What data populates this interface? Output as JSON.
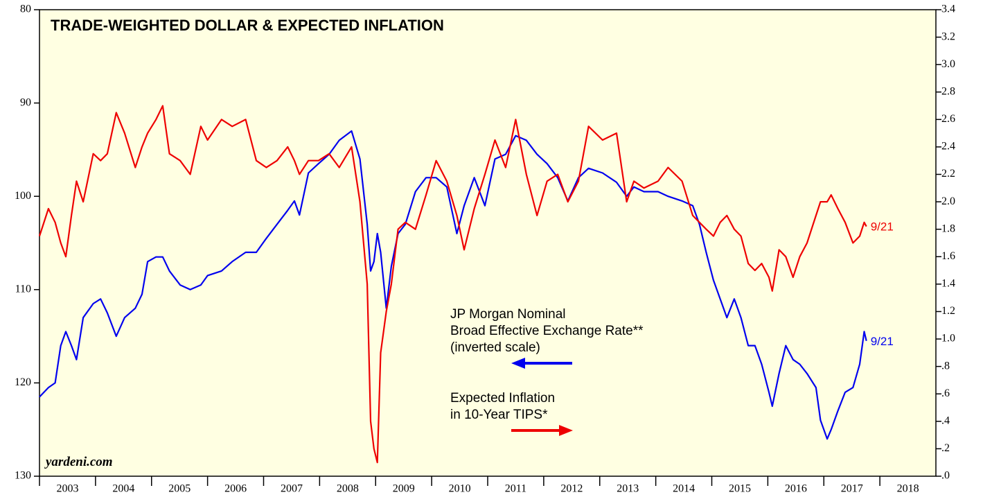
{
  "chart_data": {
    "type": "line",
    "title": "TRADE-WEIGHTED DOLLAR & EXPECTED INFLATION",
    "watermark": "yardeni.com",
    "annotations": [
      "JP Morgan Nominal",
      "Broad Effective Exchange Rate**",
      "(inverted scale)",
      "Expected Inflation",
      "in 10-Year TIPS*"
    ],
    "x": [
      2003.0,
      2003.16,
      2003.28,
      2003.38,
      2003.47,
      2003.57,
      2003.66,
      2003.78,
      2003.96,
      2004.09,
      2004.21,
      2004.37,
      2004.52,
      2004.71,
      2004.83,
      2004.93,
      2005.08,
      2005.2,
      2005.32,
      2005.51,
      2005.69,
      2005.88,
      2006.0,
      2006.25,
      2006.44,
      2006.68,
      2006.87,
      2007.05,
      2007.24,
      2007.43,
      2007.55,
      2007.64,
      2007.8,
      2007.98,
      2008.17,
      2008.35,
      2008.57,
      2008.72,
      2008.85,
      2008.91,
      2008.97,
      2009.03,
      2009.09,
      2009.19,
      2009.28,
      2009.4,
      2009.53,
      2009.71,
      2009.9,
      2010.08,
      2010.27,
      2010.45,
      2010.58,
      2010.76,
      2010.95,
      2011.13,
      2011.32,
      2011.5,
      2011.69,
      2011.88,
      2012.06,
      2012.25,
      2012.43,
      2012.62,
      2012.8,
      2013.05,
      2013.3,
      2013.48,
      2013.61,
      2013.79,
      2014.04,
      2014.22,
      2014.47,
      2014.66,
      2014.78,
      2014.9,
      2015.03,
      2015.15,
      2015.27,
      2015.4,
      2015.52,
      2015.65,
      2015.77,
      2015.89,
      2016.02,
      2016.08,
      2016.2,
      2016.32,
      2016.45,
      2016.57,
      2016.7,
      2016.86,
      2016.94,
      2017.06,
      2017.13,
      2017.25,
      2017.38,
      2017.52,
      2017.64,
      2017.72,
      2017.76
    ],
    "xlim": [
      2003,
      2019
    ],
    "xticks": [
      2003,
      2004,
      2005,
      2006,
      2007,
      2008,
      2009,
      2010,
      2011,
      2012,
      2013,
      2014,
      2015,
      2016,
      2017,
      2018
    ],
    "ylim": [
      80,
      130
    ],
    "y_inverted": true,
    "yticks": [
      80,
      90,
      100,
      110,
      120,
      130
    ],
    "y2lim": [
      0,
      3.4
    ],
    "y2ticks": [
      {
        "value": 0,
        "label": ".0"
      },
      {
        "value": 0.2,
        "label": ".2"
      },
      {
        "value": 0.4,
        "label": ".4"
      },
      {
        "value": 0.6,
        "label": ".6"
      },
      {
        "value": 0.8,
        "label": ".8"
      },
      {
        "value": 1,
        "label": "1.0"
      },
      1.2,
      1.4,
      1.6,
      1.8,
      {
        "value": 2,
        "label": "2.0"
      },
      2.2,
      2.4,
      2.6,
      2.8,
      {
        "value": 3,
        "label": "3.0"
      },
      3.2,
      3.4
    ],
    "series": [
      {
        "name": "JP Morgan Nominal Broad Effective Exchange Rate",
        "color": "#0000ee",
        "end_label": "9/21",
        "values": [
          121.5,
          120.5,
          120,
          116,
          114.5,
          116,
          117.5,
          113,
          111.5,
          111,
          112.5,
          115,
          113,
          112,
          110.5,
          107,
          106.5,
          106.5,
          108,
          109.5,
          110,
          109.5,
          108.5,
          108,
          107,
          106,
          106,
          104.5,
          103,
          101.5,
          100.5,
          102,
          97.5,
          96.5,
          95.5,
          94,
          93,
          96,
          103,
          108,
          107,
          104,
          106,
          112,
          107.5,
          104,
          103,
          99.5,
          98,
          98,
          99,
          104,
          101,
          98,
          101,
          96,
          95.5,
          93.5,
          94,
          95.5,
          96.5,
          98,
          100.5,
          98,
          97,
          97.5,
          98.5,
          100,
          99,
          99.5,
          99.5,
          100,
          100.5,
          101,
          103,
          106,
          109,
          111,
          113,
          111,
          113,
          116,
          116,
          118,
          121,
          122.5,
          119,
          116,
          117.5,
          118,
          119,
          120.5,
          124,
          126,
          125,
          123,
          121,
          120.5,
          118,
          114.5,
          115.5
        ]
      },
      {
        "name": "Expected Inflation in 10-Year TIPS",
        "color": "#ee0000",
        "axis": "y2",
        "end_label": "9/21",
        "values": [
          1.75,
          1.95,
          1.85,
          1.7,
          1.6,
          1.9,
          2.15,
          2.0,
          2.35,
          2.3,
          2.35,
          2.65,
          2.5,
          2.25,
          2.4,
          2.5,
          2.6,
          2.7,
          2.35,
          2.3,
          2.2,
          2.55,
          2.45,
          2.6,
          2.55,
          2.6,
          2.3,
          2.25,
          2.3,
          2.4,
          2.3,
          2.2,
          2.3,
          2.3,
          2.35,
          2.25,
          2.4,
          2.0,
          1.4,
          0.4,
          0.2,
          0.1,
          0.9,
          1.2,
          1.4,
          1.8,
          1.85,
          1.8,
          2.05,
          2.3,
          2.15,
          1.9,
          1.65,
          1.95,
          2.2,
          2.45,
          2.25,
          2.6,
          2.2,
          1.9,
          2.15,
          2.2,
          2.0,
          2.15,
          2.55,
          2.45,
          2.5,
          2.0,
          2.15,
          2.1,
          2.15,
          2.25,
          2.15,
          1.9,
          1.85,
          1.8,
          1.75,
          1.85,
          1.9,
          1.8,
          1.75,
          1.55,
          1.5,
          1.55,
          1.45,
          1.35,
          1.65,
          1.6,
          1.45,
          1.6,
          1.7,
          1.9,
          2.0,
          2.0,
          2.05,
          1.95,
          1.85,
          1.7,
          1.75,
          1.85,
          1.82
        ]
      }
    ]
  }
}
